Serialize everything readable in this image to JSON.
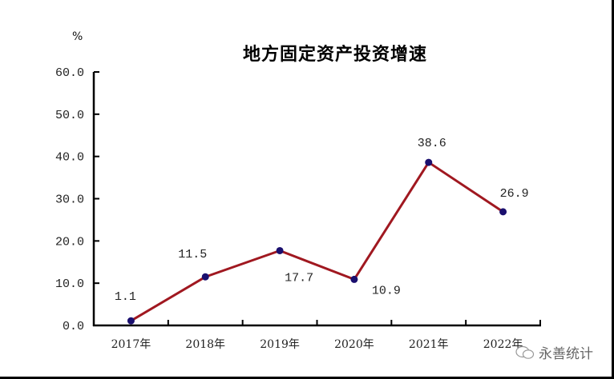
{
  "chart_data": {
    "type": "line",
    "title": "地方固定资产投资增速",
    "xlabel": "",
    "ylabel": "%",
    "categories": [
      "2017年",
      "2018年",
      "2019年",
      "2020年",
      "2021年",
      "2022年"
    ],
    "series": [
      {
        "name": "地方固定资产投资增速",
        "values": [
          1.1,
          11.5,
          17.7,
          10.9,
          38.6,
          26.9
        ],
        "color": "#a01820",
        "marker_color": "#1a0f6e"
      }
    ],
    "data_labels": [
      "1.1",
      "11.5",
      "17.7",
      "10.9",
      "38.6",
      "26.9"
    ],
    "ylim": [
      0,
      60
    ],
    "yticks": [
      "0.0",
      "10.0",
      "20.0",
      "30.0",
      "40.0",
      "50.0",
      "60.0"
    ],
    "grid": false,
    "legend": "none"
  },
  "header": {
    "title": "地方固定资产投资增速",
    "unit": "%"
  },
  "watermark": {
    "text": "永善统计"
  }
}
